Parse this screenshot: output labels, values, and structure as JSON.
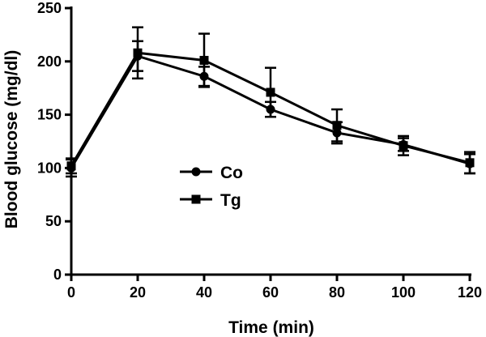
{
  "chart_data": {
    "type": "line",
    "title": "",
    "xlabel": "Time (min)",
    "ylabel": "Blood glucose (mg/dl)",
    "x": [
      0,
      20,
      40,
      60,
      80,
      100,
      120
    ],
    "xlim": [
      0,
      120
    ],
    "ylim": [
      0,
      250
    ],
    "xticks": [
      0,
      20,
      40,
      60,
      80,
      100,
      120
    ],
    "yticks": [
      0,
      50,
      100,
      150,
      200,
      250
    ],
    "grid": false,
    "legend_position": "center-left",
    "series": [
      {
        "name": "Co",
        "marker": "circle",
        "color": "#000000",
        "values": [
          100,
          205,
          186,
          155,
          133,
          122,
          104
        ],
        "errors": [
          8,
          14,
          9,
          7,
          10,
          6,
          9
        ]
      },
      {
        "name": "Tg",
        "marker": "square",
        "color": "#000000",
        "values": [
          102,
          208,
          201,
          171,
          140,
          121,
          105
        ],
        "errors": [
          7,
          24,
          25,
          23,
          15,
          9,
          10
        ]
      }
    ]
  }
}
